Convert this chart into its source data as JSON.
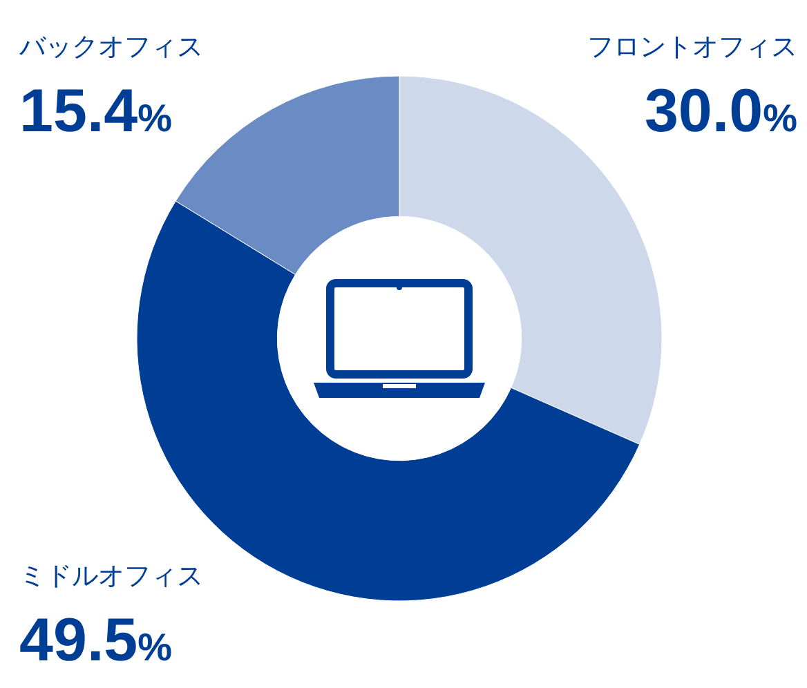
{
  "chart_data": {
    "type": "donut",
    "categories": [
      "フロントオフィス",
      "ミドルオフィス",
      "バックオフィス"
    ],
    "values": [
      30.0,
      49.5,
      15.4
    ],
    "colors": [
      "#cdd9ea",
      "#003e96",
      "#6a8bc3"
    ],
    "value_labels": [
      "30.0%",
      "49.5%",
      "15.4%"
    ]
  }
}
